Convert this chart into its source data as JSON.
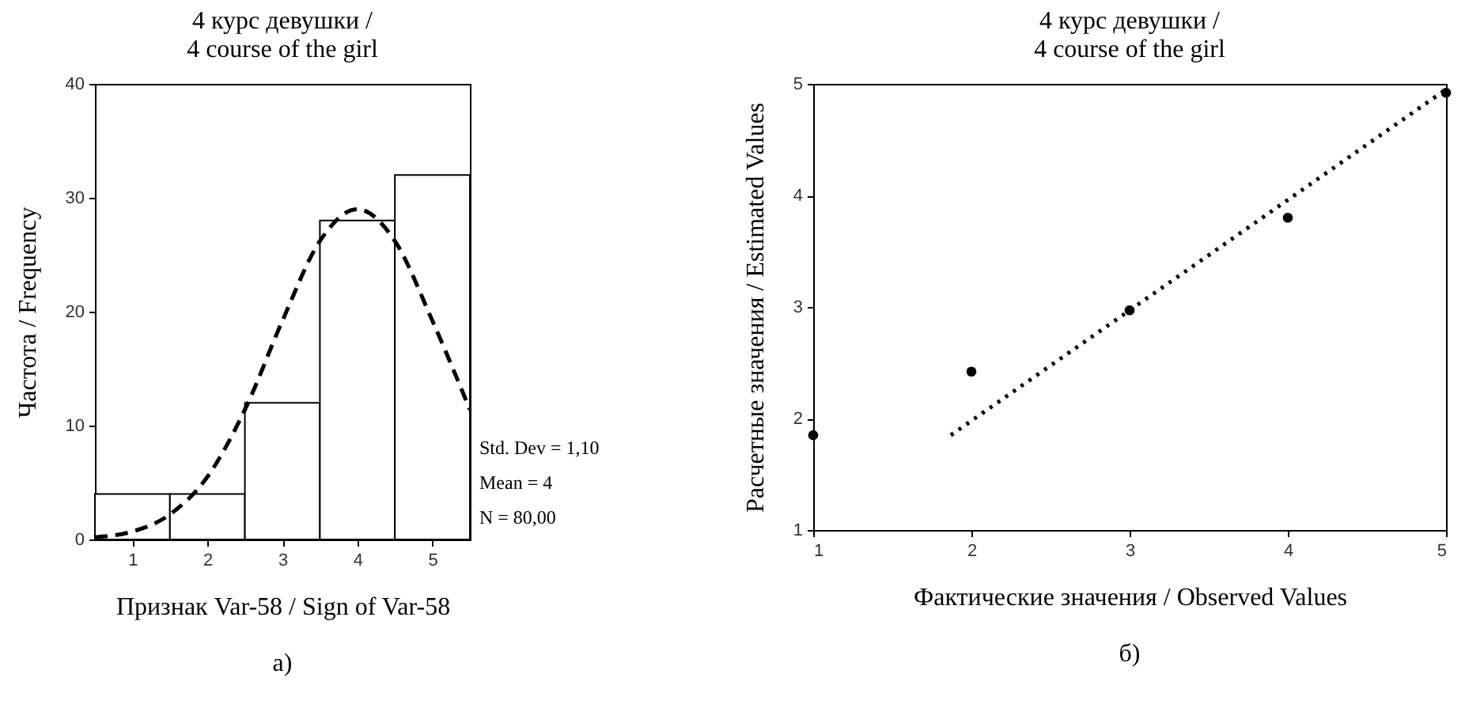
{
  "chart_data": [
    {
      "type": "histogram",
      "title": "4 курс девушки /\n4 course of the girl",
      "xlabel": "Признак Var-58 / Sign of Var-58",
      "ylabel": "Частота / Frequency",
      "bins": [
        0.5,
        1.5,
        2.5,
        3.5,
        4.5,
        5.5
      ],
      "values": [
        4,
        4,
        12,
        28,
        32
      ],
      "color": "#ffffff",
      "series": [
        {
          "type": "line",
          "x": [
            0.5,
            1,
            1.5,
            2,
            2.5,
            3,
            3.5,
            4,
            4.5,
            5,
            5.5
          ],
          "values": [
            0.2,
            0.7,
            2.2,
            5.5,
            11.4,
            19.2,
            26.2,
            29,
            26.2,
            19.2,
            11.4
          ],
          "color": "#000000",
          "line_style": "dashed"
        }
      ],
      "xlim": [
        0.5,
        5.5
      ],
      "xticks": [
        1,
        2,
        3,
        4,
        5
      ],
      "ylim": [
        0,
        40
      ],
      "yticks": [
        0,
        10,
        20,
        30,
        40
      ],
      "grid": false,
      "annotations": [
        "Std. Dev = 1,10",
        "Mean = 4",
        "N = 80,00",
        "а)"
      ]
    },
    {
      "type": "scatter",
      "title": "4 курс девушки /\n4 course of the girl",
      "xlabel": "Фактические значения / Observed Values",
      "ylabel": "Расчетные значения / Estimated Values",
      "series": [
        {
          "type": "scatter",
          "x": [
            1,
            2,
            3,
            4,
            5
          ],
          "values": [
            1.85,
            2.42,
            2.97,
            3.8,
            4.92
          ],
          "color": "#000000",
          "marker": "circle"
        },
        {
          "type": "line",
          "x": [
            1.87,
            5
          ],
          "values": [
            1.85,
            4.95
          ],
          "color": "#000000",
          "line_style": "dotted"
        }
      ],
      "xlim": [
        1,
        5
      ],
      "xticks": [
        1,
        2,
        3,
        4,
        5
      ],
      "ylim": [
        1,
        5
      ],
      "yticks": [
        1,
        2,
        3,
        4,
        5
      ],
      "grid": false,
      "annotations": [
        "б)"
      ]
    }
  ]
}
